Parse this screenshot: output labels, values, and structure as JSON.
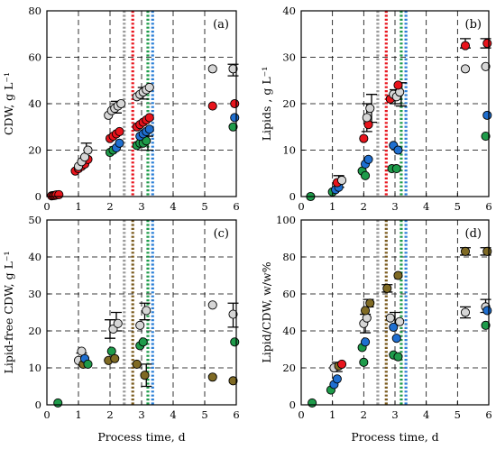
{
  "colors": {
    "gray": "#d6d6d6",
    "red": "#e8141c",
    "blue": "#1f6fd0",
    "green": "#1e9b4a",
    "brown": "#7f6a24",
    "vline_gray": "#9a9a9a",
    "vline_red": "#e8141c",
    "vline_green": "#1e9b4a",
    "vline_blue": "#2a7ed6",
    "vline_brown": "#7a5a1c",
    "vline_teal": "#1aa0a8"
  },
  "chart_data": [
    {
      "id": "a",
      "type": "scatter",
      "panel_label": "(a)",
      "xlabel": "",
      "ylabel": "CDW, g L⁻¹",
      "xlim": [
        0,
        6
      ],
      "ylim": [
        0,
        80
      ],
      "xticks": [
        "0",
        "1",
        "2",
        "3",
        "4",
        "5",
        "6"
      ],
      "yticks": [
        "0",
        "20",
        "40",
        "60",
        "80"
      ],
      "xtick_values": [
        0,
        1,
        2,
        3,
        4,
        5,
        6
      ],
      "ytick_values": [
        0,
        20,
        40,
        60,
        80
      ],
      "vlines": [
        {
          "x": 2.45,
          "color": "vline_gray"
        },
        {
          "x": 2.72,
          "color": "vline_red"
        },
        {
          "x": 3.2,
          "color": "vline_green"
        },
        {
          "x": 3.35,
          "color": "vline_blue"
        }
      ],
      "points": [
        {
          "x": 0.15,
          "y": 0.3,
          "c": "red"
        },
        {
          "x": 0.2,
          "y": 0.4,
          "c": "red"
        },
        {
          "x": 0.25,
          "y": 0.5,
          "c": "red"
        },
        {
          "x": 0.3,
          "y": 0.7,
          "c": "red"
        },
        {
          "x": 0.38,
          "y": 0.8,
          "c": "red"
        },
        {
          "x": 0.9,
          "y": 11,
          "c": "red"
        },
        {
          "x": 1.0,
          "y": 12,
          "c": "red"
        },
        {
          "x": 1.1,
          "y": 13,
          "c": "red"
        },
        {
          "x": 1.2,
          "y": 14,
          "c": "red"
        },
        {
          "x": 1.3,
          "y": 16,
          "c": "red"
        },
        {
          "x": 1.0,
          "y": 13,
          "c": "gray"
        },
        {
          "x": 1.1,
          "y": 15,
          "c": "gray"
        },
        {
          "x": 1.2,
          "y": 17,
          "c": "gray"
        },
        {
          "x": 1.3,
          "y": 20,
          "c": "gray"
        },
        {
          "x": 2.0,
          "y": 19,
          "c": "green"
        },
        {
          "x": 2.1,
          "y": 20,
          "c": "green"
        },
        {
          "x": 2.2,
          "y": 21,
          "c": "blue"
        },
        {
          "x": 2.3,
          "y": 23,
          "c": "blue"
        },
        {
          "x": 2.0,
          "y": 25,
          "c": "red"
        },
        {
          "x": 2.1,
          "y": 26,
          "c": "red"
        },
        {
          "x": 2.2,
          "y": 27,
          "c": "red"
        },
        {
          "x": 2.3,
          "y": 28,
          "c": "red"
        },
        {
          "x": 1.95,
          "y": 35,
          "c": "gray"
        },
        {
          "x": 2.05,
          "y": 37,
          "c": "gray"
        },
        {
          "x": 2.15,
          "y": 38,
          "c": "gray"
        },
        {
          "x": 2.25,
          "y": 39,
          "c": "gray"
        },
        {
          "x": 2.35,
          "y": 40,
          "c": "gray"
        },
        {
          "x": 2.85,
          "y": 22,
          "c": "green"
        },
        {
          "x": 2.95,
          "y": 23,
          "c": "green"
        },
        {
          "x": 3.05,
          "y": 23,
          "c": "green"
        },
        {
          "x": 3.15,
          "y": 24,
          "c": "green"
        },
        {
          "x": 2.95,
          "y": 26,
          "c": "blue"
        },
        {
          "x": 3.05,
          "y": 27,
          "c": "blue"
        },
        {
          "x": 3.15,
          "y": 28,
          "c": "blue"
        },
        {
          "x": 3.25,
          "y": 29,
          "c": "blue"
        },
        {
          "x": 2.85,
          "y": 30,
          "c": "red"
        },
        {
          "x": 2.95,
          "y": 31,
          "c": "red"
        },
        {
          "x": 3.05,
          "y": 32,
          "c": "red"
        },
        {
          "x": 3.15,
          "y": 33,
          "c": "red"
        },
        {
          "x": 3.25,
          "y": 34,
          "c": "red"
        },
        {
          "x": 2.85,
          "y": 43,
          "c": "gray"
        },
        {
          "x": 2.95,
          "y": 44,
          "c": "gray"
        },
        {
          "x": 3.05,
          "y": 45,
          "c": "gray"
        },
        {
          "x": 3.15,
          "y": 46,
          "c": "gray"
        },
        {
          "x": 3.25,
          "y": 47,
          "c": "gray"
        },
        {
          "x": 5.25,
          "y": 39,
          "c": "red"
        },
        {
          "x": 5.25,
          "y": 55,
          "c": "gray"
        },
        {
          "x": 5.9,
          "y": 30,
          "c": "green"
        },
        {
          "x": 5.95,
          "y": 34,
          "c": "blue"
        },
        {
          "x": 5.95,
          "y": 40,
          "c": "red"
        },
        {
          "x": 5.9,
          "y": 55,
          "c": "gray"
        }
      ],
      "errorbars": [
        {
          "x": 1.25,
          "lo": 17,
          "hi": 23
        },
        {
          "x": 2.2,
          "lo": 36,
          "hi": 41
        },
        {
          "x": 3.05,
          "lo": 42,
          "hi": 47
        },
        {
          "x": 3.2,
          "lo": 20,
          "hi": 26
        },
        {
          "x": 5.9,
          "lo": 52,
          "hi": 57
        }
      ]
    },
    {
      "id": "b",
      "type": "scatter",
      "panel_label": "(b)",
      "xlabel": "",
      "ylabel": "Lipids , g L⁻¹",
      "xlim": [
        0,
        6
      ],
      "ylim": [
        0,
        40
      ],
      "xticks": [
        "0",
        "1",
        "2",
        "3",
        "4",
        "5",
        "6"
      ],
      "yticks": [
        "0",
        "10",
        "20",
        "30",
        "40"
      ],
      "xtick_values": [
        0,
        1,
        2,
        3,
        4,
        5,
        6
      ],
      "ytick_values": [
        0,
        10,
        20,
        30,
        40
      ],
      "vlines": [
        {
          "x": 2.45,
          "color": "vline_gray"
        },
        {
          "x": 2.72,
          "color": "vline_red"
        },
        {
          "x": 3.2,
          "color": "vline_green"
        },
        {
          "x": 3.35,
          "color": "vline_blue"
        }
      ],
      "points": [
        {
          "x": 0.3,
          "y": 0.0,
          "c": "green"
        },
        {
          "x": 1.0,
          "y": 1.0,
          "c": "green"
        },
        {
          "x": 1.1,
          "y": 1.5,
          "c": "blue"
        },
        {
          "x": 1.2,
          "y": 2.0,
          "c": "blue"
        },
        {
          "x": 1.15,
          "y": 3.0,
          "c": "red"
        },
        {
          "x": 1.3,
          "y": 3.5,
          "c": "gray"
        },
        {
          "x": 1.95,
          "y": 5.5,
          "c": "green"
        },
        {
          "x": 2.05,
          "y": 7.0,
          "c": "blue"
        },
        {
          "x": 2.15,
          "y": 8.0,
          "c": "blue"
        },
        {
          "x": 2.05,
          "y": 4.5,
          "c": "green"
        },
        {
          "x": 2.0,
          "y": 12.5,
          "c": "red"
        },
        {
          "x": 2.15,
          "y": 15.5,
          "c": "red"
        },
        {
          "x": 2.1,
          "y": 17.0,
          "c": "gray"
        },
        {
          "x": 2.2,
          "y": 19.0,
          "c": "gray"
        },
        {
          "x": 2.9,
          "y": 6.0,
          "c": "green"
        },
        {
          "x": 3.05,
          "y": 6.0,
          "c": "green"
        },
        {
          "x": 2.95,
          "y": 11.0,
          "c": "blue"
        },
        {
          "x": 3.1,
          "y": 10.0,
          "c": "blue"
        },
        {
          "x": 2.85,
          "y": 21.0,
          "c": "red"
        },
        {
          "x": 2.95,
          "y": 22.0,
          "c": "gray"
        },
        {
          "x": 3.05,
          "y": 21.5,
          "c": "gray"
        },
        {
          "x": 3.15,
          "y": 22.5,
          "c": "gray"
        },
        {
          "x": 3.1,
          "y": 24.0,
          "c": "red"
        },
        {
          "x": 5.25,
          "y": 32.5,
          "c": "red"
        },
        {
          "x": 5.25,
          "y": 27.5,
          "c": "gray"
        },
        {
          "x": 5.95,
          "y": 33.0,
          "c": "red"
        },
        {
          "x": 5.9,
          "y": 28.0,
          "c": "gray"
        },
        {
          "x": 5.95,
          "y": 17.5,
          "c": "blue"
        },
        {
          "x": 5.9,
          "y": 13.0,
          "c": "green"
        }
      ],
      "errorbars": [
        {
          "x": 1.2,
          "lo": 2,
          "hi": 4.5
        },
        {
          "x": 2.1,
          "lo": 14,
          "hi": 20
        },
        {
          "x": 2.25,
          "lo": 16,
          "hi": 22
        },
        {
          "x": 3.0,
          "lo": 20,
          "hi": 23
        },
        {
          "x": 3.2,
          "lo": 19.5,
          "hi": 24.5
        },
        {
          "x": 5.25,
          "lo": 32,
          "hi": 34
        },
        {
          "x": 5.9,
          "lo": 32,
          "hi": 34
        }
      ]
    },
    {
      "id": "c",
      "type": "scatter",
      "panel_label": "(c)",
      "xlabel": "Process time, d",
      "ylabel": "Lipid-free CDW, g L⁻¹",
      "xlim": [
        0,
        6
      ],
      "ylim": [
        0,
        50
      ],
      "xticks": [
        "0",
        "1",
        "2",
        "3",
        "4",
        "5",
        "6"
      ],
      "yticks": [
        "0",
        "10",
        "20",
        "30",
        "40",
        "50"
      ],
      "xtick_values": [
        0,
        1,
        2,
        3,
        4,
        5,
        6
      ],
      "ytick_values": [
        0,
        10,
        20,
        30,
        40,
        50
      ],
      "vlines": [
        {
          "x": 2.45,
          "color": "vline_gray"
        },
        {
          "x": 2.72,
          "color": "vline_brown"
        },
        {
          "x": 3.2,
          "color": "vline_green"
        },
        {
          "x": 3.35,
          "color": "vline_blue"
        }
      ],
      "points": [
        {
          "x": 0.35,
          "y": 0.5,
          "c": "green"
        },
        {
          "x": 1.0,
          "y": 12,
          "c": "gray"
        },
        {
          "x": 1.1,
          "y": 14.5,
          "c": "gray"
        },
        {
          "x": 1.15,
          "y": 11,
          "c": "brown"
        },
        {
          "x": 1.2,
          "y": 12.5,
          "c": "blue"
        },
        {
          "x": 1.3,
          "y": 11,
          "c": "green"
        },
        {
          "x": 1.95,
          "y": 12,
          "c": "brown"
        },
        {
          "x": 2.05,
          "y": 14.5,
          "c": "green"
        },
        {
          "x": 2.15,
          "y": 12.5,
          "c": "brown"
        },
        {
          "x": 2.1,
          "y": 20.5,
          "c": "gray"
        },
        {
          "x": 2.25,
          "y": 22,
          "c": "gray"
        },
        {
          "x": 2.85,
          "y": 11,
          "c": "brown"
        },
        {
          "x": 2.95,
          "y": 16,
          "c": "green"
        },
        {
          "x": 3.05,
          "y": 17,
          "c": "green"
        },
        {
          "x": 3.1,
          "y": 8,
          "c": "brown"
        },
        {
          "x": 2.95,
          "y": 21.5,
          "c": "gray"
        },
        {
          "x": 3.15,
          "y": 25.5,
          "c": "gray"
        },
        {
          "x": 5.25,
          "y": 7.5,
          "c": "brown"
        },
        {
          "x": 5.25,
          "y": 27,
          "c": "gray"
        },
        {
          "x": 5.9,
          "y": 6.5,
          "c": "brown"
        },
        {
          "x": 5.9,
          "y": 24.5,
          "c": "gray"
        },
        {
          "x": 5.95,
          "y": 17,
          "c": "green"
        }
      ],
      "errorbars": [
        {
          "x": 1.1,
          "lo": 11,
          "hi": 14
        },
        {
          "x": 2.0,
          "lo": 18,
          "hi": 23
        },
        {
          "x": 2.2,
          "lo": 20,
          "hi": 25
        },
        {
          "x": 3.1,
          "lo": 23,
          "hi": 27.5
        },
        {
          "x": 3.15,
          "lo": 5,
          "hi": 11
        },
        {
          "x": 5.9,
          "lo": 21,
          "hi": 27.5
        }
      ]
    },
    {
      "id": "d",
      "type": "scatter",
      "panel_label": "(d)",
      "xlabel": "Process time, d",
      "ylabel": "Lipid/CDW, w/w%",
      "xlim": [
        0,
        6
      ],
      "ylim": [
        0,
        100
      ],
      "xticks": [
        "0",
        "1",
        "2",
        "3",
        "4",
        "5",
        "6"
      ],
      "yticks": [
        "0",
        "20",
        "40",
        "60",
        "80",
        "100"
      ],
      "xtick_values": [
        0,
        1,
        2,
        3,
        4,
        5,
        6
      ],
      "ytick_values": [
        0,
        20,
        40,
        60,
        80,
        100
      ],
      "vlines": [
        {
          "x": 2.45,
          "color": "vline_gray"
        },
        {
          "x": 2.72,
          "color": "vline_brown"
        },
        {
          "x": 3.2,
          "color": "vline_green"
        },
        {
          "x": 3.35,
          "color": "vline_blue"
        }
      ],
      "points": [
        {
          "x": 0.35,
          "y": 1,
          "c": "green"
        },
        {
          "x": 0.95,
          "y": 8,
          "c": "green"
        },
        {
          "x": 1.05,
          "y": 11,
          "c": "blue"
        },
        {
          "x": 1.15,
          "y": 14,
          "c": "blue"
        },
        {
          "x": 1.05,
          "y": 20,
          "c": "gray"
        },
        {
          "x": 1.2,
          "y": 21,
          "c": "brown"
        },
        {
          "x": 1.3,
          "y": 22,
          "c": "red"
        },
        {
          "x": 1.95,
          "y": 31,
          "c": "green"
        },
        {
          "x": 2.0,
          "y": 23,
          "c": "green"
        },
        {
          "x": 2.05,
          "y": 34,
          "c": "blue"
        },
        {
          "x": 2.0,
          "y": 44,
          "c": "gray"
        },
        {
          "x": 2.1,
          "y": 47,
          "c": "gray"
        },
        {
          "x": 2.05,
          "y": 51,
          "c": "brown"
        },
        {
          "x": 2.2,
          "y": 55,
          "c": "brown"
        },
        {
          "x": 2.75,
          "y": 63,
          "c": "brown"
        },
        {
          "x": 3.1,
          "y": 70,
          "c": "brown"
        },
        {
          "x": 2.85,
          "y": 47,
          "c": "gray"
        },
        {
          "x": 2.95,
          "y": 42,
          "c": "blue"
        },
        {
          "x": 3.05,
          "y": 36,
          "c": "blue"
        },
        {
          "x": 2.95,
          "y": 27,
          "c": "green"
        },
        {
          "x": 3.1,
          "y": 26,
          "c": "green"
        },
        {
          "x": 3.15,
          "y": 45,
          "c": "gray"
        },
        {
          "x": 5.25,
          "y": 83,
          "c": "brown"
        },
        {
          "x": 5.25,
          "y": 50,
          "c": "gray"
        },
        {
          "x": 5.95,
          "y": 83,
          "c": "brown"
        },
        {
          "x": 5.9,
          "y": 53,
          "c": "gray"
        },
        {
          "x": 5.95,
          "y": 51,
          "c": "blue"
        },
        {
          "x": 5.9,
          "y": 43,
          "c": "green"
        }
      ],
      "errorbars": [
        {
          "x": 1.15,
          "lo": 18,
          "hi": 23
        },
        {
          "x": 2.05,
          "lo": 39,
          "hi": 49
        },
        {
          "x": 2.15,
          "lo": 53,
          "hi": 57
        },
        {
          "x": 2.75,
          "lo": 61,
          "hi": 65
        },
        {
          "x": 3.0,
          "lo": 43,
          "hi": 50
        },
        {
          "x": 5.25,
          "lo": 47,
          "hi": 53
        },
        {
          "x": 5.25,
          "lo": 81,
          "hi": 85
        },
        {
          "x": 5.9,
          "lo": 81,
          "hi": 85
        },
        {
          "x": 5.9,
          "lo": 50,
          "hi": 57
        }
      ]
    }
  ]
}
